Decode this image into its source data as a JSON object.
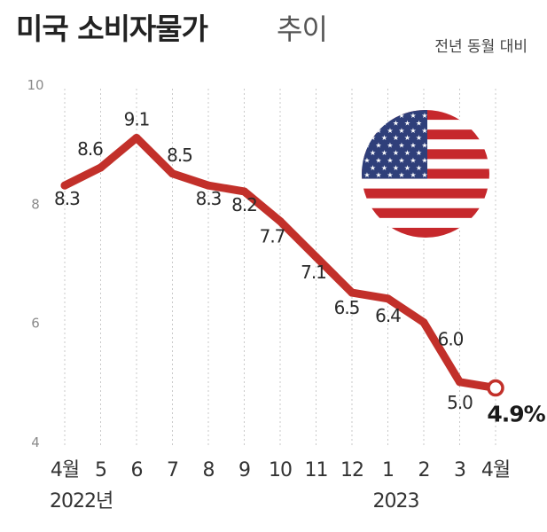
{
  "title": "미국 소비자물가",
  "title_suffix": "추이",
  "subtitle": "전년 동월 대비",
  "chart_data": {
    "type": "line",
    "title": "미국 소비자물가 추이",
    "subtitle": "전년 동월 대비",
    "categories": [
      "4월",
      "5",
      "6",
      "7",
      "8",
      "9",
      "10",
      "11",
      "12",
      "1",
      "2",
      "3",
      "4월"
    ],
    "year_labels": [
      {
        "index": 0,
        "label": "2022년"
      },
      {
        "index": 9,
        "label": "2023"
      }
    ],
    "series": [
      {
        "values": [
          8.3,
          8.6,
          9.1,
          8.5,
          8.3,
          8.2,
          7.7,
          7.1,
          6.5,
          6.4,
          6.0,
          5.0,
          4.9
        ]
      }
    ],
    "data_labels": [
      "8.3",
      "8.6",
      "9.1",
      "8.5",
      "8.3",
      "8.2",
      "7.7",
      "7.1",
      "6.5",
      "6.4",
      "6.0",
      "5.0",
      "4.9%"
    ],
    "yticks": [
      "10",
      "8",
      "6",
      "4"
    ],
    "ylim": [
      4,
      10
    ],
    "grid": "vertical-dotted",
    "line_color": "#c2302a",
    "highlight_last_point": true,
    "decoration": "us-flag-icon"
  }
}
